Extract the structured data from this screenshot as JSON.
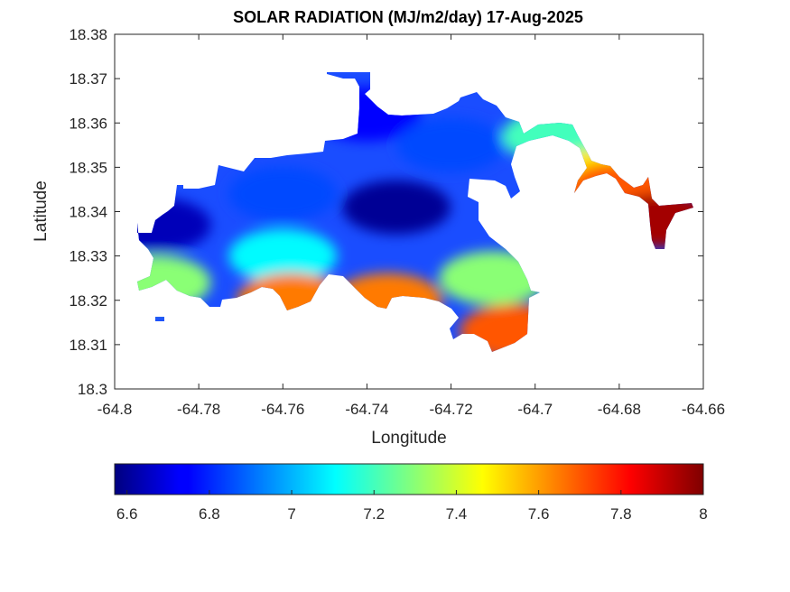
{
  "chart_data": {
    "type": "heatmap",
    "title": "SOLAR RADIATION (MJ/m2/day) 17-Aug-2025",
    "xlabel": "Longitude",
    "ylabel": "Latitude",
    "xlim": [
      -64.8,
      -64.66
    ],
    "ylim": [
      18.3,
      18.38
    ],
    "xticks": [
      -64.8,
      -64.78,
      -64.76,
      -64.74,
      -64.72,
      -64.7,
      -64.68,
      -64.66
    ],
    "yticks": [
      18.3,
      18.31,
      18.32,
      18.33,
      18.34,
      18.35,
      18.36,
      18.37,
      18.38
    ],
    "xtick_labels": [
      "-64.8",
      "-64.78",
      "-64.76",
      "-64.74",
      "-64.72",
      "-64.7",
      "-64.68",
      "-64.66"
    ],
    "ytick_labels": [
      "18.3",
      "18.31",
      "18.32",
      "18.33",
      "18.34",
      "18.35",
      "18.36",
      "18.37",
      "18.38"
    ],
    "colorbar": {
      "limits": [
        6.57,
        8
      ],
      "ticks": [
        6.6,
        6.8,
        7,
        7.2,
        7.4,
        7.6,
        7.8,
        8
      ],
      "tick_labels": [
        "6.6",
        "6.8",
        "7",
        "7.2",
        "7.4",
        "7.6",
        "7.8",
        "8"
      ],
      "colormap": "jet",
      "placement": "bottom"
    },
    "regions": [
      {
        "lon": -64.733,
        "lat": 18.341,
        "value": 6.6
      },
      {
        "lon": -64.79,
        "lat": 18.337,
        "value": 6.65
      },
      {
        "lon": -64.76,
        "lat": 18.344,
        "value": 6.85
      },
      {
        "lon": -64.74,
        "lat": 18.362,
        "value": 6.75
      },
      {
        "lon": -64.72,
        "lat": 18.355,
        "value": 6.85
      },
      {
        "lon": -64.76,
        "lat": 18.33,
        "value": 7.1
      },
      {
        "lon": -64.79,
        "lat": 18.324,
        "value": 7.3
      },
      {
        "lon": -64.71,
        "lat": 18.325,
        "value": 7.3
      },
      {
        "lon": -64.758,
        "lat": 18.32,
        "value": 7.65
      },
      {
        "lon": -64.735,
        "lat": 18.32,
        "value": 7.65
      },
      {
        "lon": -64.705,
        "lat": 18.313,
        "value": 7.7
      },
      {
        "lon": -64.695,
        "lat": 18.357,
        "value": 7.2
      },
      {
        "lon": -64.685,
        "lat": 18.348,
        "value": 7.5
      },
      {
        "lon": -64.68,
        "lat": 18.345,
        "value": 7.7
      },
      {
        "lon": -64.67,
        "lat": 18.338,
        "value": 7.95
      }
    ],
    "grid": false
  }
}
